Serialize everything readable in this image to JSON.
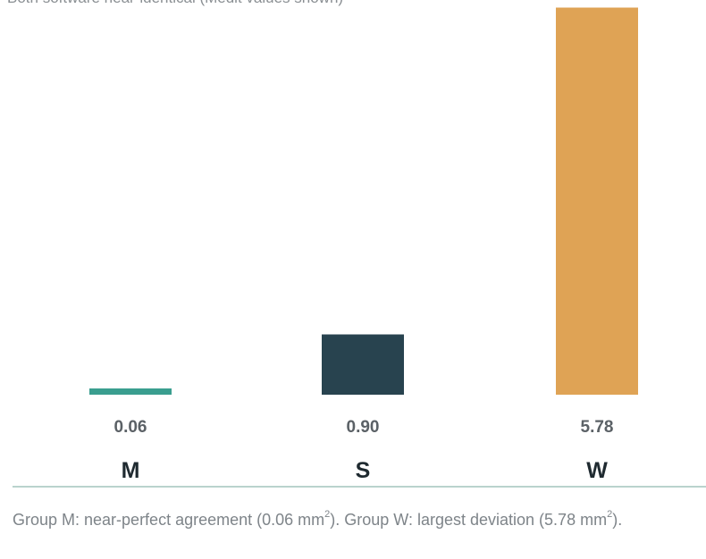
{
  "subtitle": "Both software near-identical (Medit values shown)",
  "caption": {
    "part1": "Group M: near-perfect agreement (0.06 mm",
    "part2": "). Group W: largest deviation (5.78 mm",
    "part3": ").",
    "superscript": "2"
  },
  "colors": {
    "M": "#3a9e8f",
    "S": "#28434f",
    "W": "#dfa355",
    "value_label": "#5b6166",
    "category_label": "#1f2a30"
  },
  "chart_data": {
    "type": "bar",
    "categories": [
      "M",
      "S",
      "W"
    ],
    "values": [
      0.06,
      0.9,
      5.78
    ],
    "value_labels": [
      "0.06",
      "0.90",
      "5.78"
    ],
    "title": "",
    "xlabel": "",
    "ylabel": "",
    "ylim": [
      0,
      5.8
    ],
    "grid": false
  }
}
